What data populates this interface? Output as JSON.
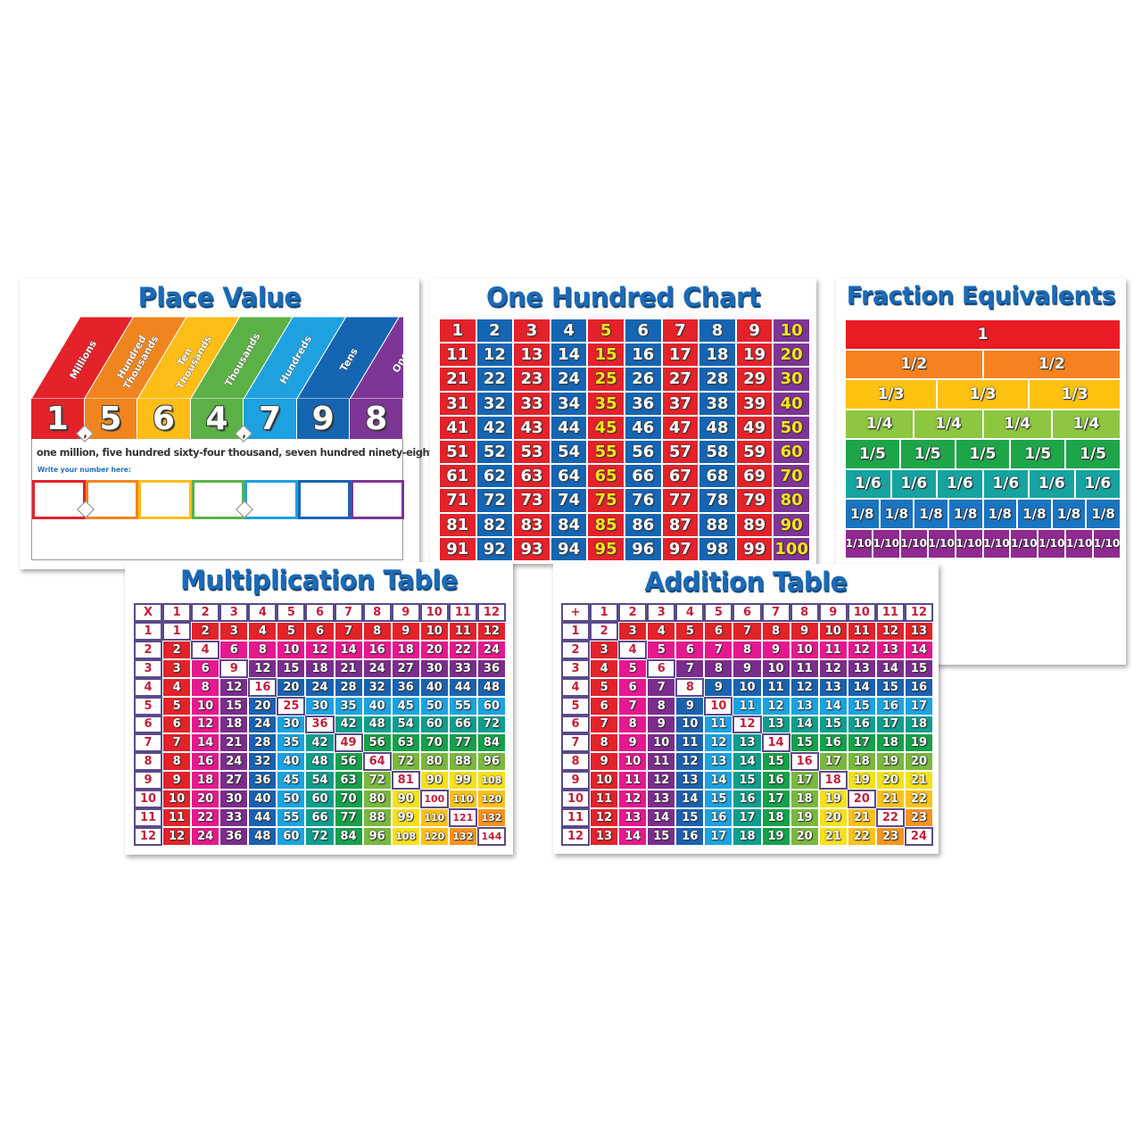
{
  "place_value": {
    "title": "Place Value",
    "columns": [
      {
        "label": "Millions",
        "digit": "1",
        "color": "#e3222a"
      },
      {
        "label": "Hundred Thousands",
        "digit": "5",
        "color": "#f0851f"
      },
      {
        "label": "Ten Thousands",
        "digit": "6",
        "color": "#fcbd17"
      },
      {
        "label": "Thousands",
        "digit": "4",
        "color": "#5bb146"
      },
      {
        "label": "Hundreds",
        "digit": "7",
        "color": "#1ea1e0"
      },
      {
        "label": "Tens",
        "digit": "9",
        "color": "#1565b3"
      },
      {
        "label": "Ones",
        "digit": "8",
        "color": "#7d3596"
      }
    ],
    "separator": ",",
    "words": "one million, five hundred sixty-four thousand, seven hundred ninety-eight",
    "write_prompt": "Write your number here:"
  },
  "hundred_chart": {
    "title": "One Hundred Chart",
    "colors": {
      "red": "#e3222a",
      "blue": "#1565b3",
      "purple": "#7d3596",
      "yellow_text": "#ffe21a"
    },
    "rows": [
      [
        1,
        2,
        3,
        4,
        5,
        6,
        7,
        8,
        9,
        10
      ],
      [
        11,
        12,
        13,
        14,
        15,
        16,
        17,
        18,
        19,
        20
      ],
      [
        21,
        22,
        23,
        24,
        25,
        26,
        27,
        28,
        29,
        30
      ],
      [
        31,
        32,
        33,
        34,
        35,
        36,
        37,
        38,
        39,
        40
      ],
      [
        41,
        42,
        43,
        44,
        45,
        46,
        47,
        48,
        49,
        50
      ],
      [
        51,
        52,
        53,
        54,
        55,
        56,
        57,
        58,
        59,
        60
      ],
      [
        61,
        62,
        63,
        64,
        65,
        66,
        67,
        68,
        69,
        70
      ],
      [
        71,
        72,
        73,
        74,
        75,
        76,
        77,
        78,
        79,
        80
      ],
      [
        81,
        82,
        83,
        84,
        85,
        86,
        87,
        88,
        89,
        90
      ],
      [
        91,
        92,
        93,
        94,
        95,
        96,
        97,
        98,
        99,
        100
      ]
    ]
  },
  "fraction_equivalents": {
    "title": "Fraction Equivalents",
    "rows": [
      {
        "fraction": "1",
        "count": 1,
        "color": "#e91c24"
      },
      {
        "fraction": "1/2",
        "count": 2,
        "color": "#f5821f"
      },
      {
        "fraction": "1/3",
        "count": 3,
        "color": "#fdc20f"
      },
      {
        "fraction": "1/4",
        "count": 4,
        "color": "#8dc63f"
      },
      {
        "fraction": "1/5",
        "count": 5,
        "color": "#1ea54a"
      },
      {
        "fraction": "1/6",
        "count": 6,
        "color": "#17a3a0"
      },
      {
        "fraction": "1/8",
        "count": 8,
        "color": "#1a74c0"
      },
      {
        "fraction": "1/10",
        "count": 10,
        "color": "#8e2a92"
      }
    ]
  },
  "band_colors": [
    "#e3222a",
    "#e6188f",
    "#7b2d8e",
    "#1a62b0",
    "#1ba3e0",
    "#0e9e8e",
    "#14a14a",
    "#7ab83e",
    "#f5e11b",
    "#fbc21a",
    "#f7941d",
    "#f7941d"
  ],
  "multiplication_table": {
    "title": "Multiplication Table",
    "operator": "X",
    "headers": [
      1,
      2,
      3,
      4,
      5,
      6,
      7,
      8,
      9,
      10,
      11,
      12
    ],
    "rows": [
      [
        1,
        2,
        3,
        4,
        5,
        6,
        7,
        8,
        9,
        10,
        11,
        12
      ],
      [
        2,
        4,
        6,
        8,
        10,
        12,
        14,
        16,
        18,
        20,
        22,
        24
      ],
      [
        3,
        6,
        9,
        12,
        15,
        18,
        21,
        24,
        27,
        30,
        33,
        36
      ],
      [
        4,
        8,
        12,
        16,
        20,
        24,
        28,
        32,
        36,
        40,
        44,
        48
      ],
      [
        5,
        10,
        15,
        20,
        25,
        30,
        35,
        40,
        45,
        50,
        55,
        60
      ],
      [
        6,
        12,
        18,
        24,
        30,
        36,
        42,
        48,
        54,
        60,
        66,
        72
      ],
      [
        7,
        14,
        21,
        28,
        35,
        42,
        49,
        56,
        63,
        70,
        77,
        84
      ],
      [
        8,
        16,
        24,
        32,
        40,
        48,
        56,
        64,
        72,
        80,
        88,
        96
      ],
      [
        9,
        18,
        27,
        36,
        45,
        54,
        63,
        72,
        81,
        90,
        99,
        108
      ],
      [
        10,
        20,
        30,
        40,
        50,
        60,
        70,
        80,
        90,
        100,
        110,
        120
      ],
      [
        11,
        22,
        33,
        44,
        55,
        66,
        77,
        88,
        99,
        110,
        121,
        132
      ],
      [
        12,
        24,
        36,
        48,
        60,
        72,
        84,
        96,
        108,
        120,
        132,
        144
      ]
    ]
  },
  "addition_table": {
    "title": "Addition Table",
    "operator": "+",
    "headers": [
      1,
      2,
      3,
      4,
      5,
      6,
      7,
      8,
      9,
      10,
      11,
      12
    ],
    "rows": [
      [
        2,
        3,
        4,
        5,
        6,
        7,
        8,
        9,
        10,
        11,
        12,
        13
      ],
      [
        3,
        4,
        5,
        6,
        7,
        8,
        9,
        10,
        11,
        12,
        13,
        14
      ],
      [
        4,
        5,
        6,
        7,
        8,
        9,
        10,
        11,
        12,
        13,
        14,
        15
      ],
      [
        5,
        6,
        7,
        8,
        9,
        10,
        11,
        12,
        13,
        14,
        15,
        16
      ],
      [
        6,
        7,
        8,
        9,
        10,
        11,
        12,
        13,
        14,
        15,
        16,
        17
      ],
      [
        7,
        8,
        9,
        10,
        11,
        12,
        13,
        14,
        15,
        16,
        17,
        18
      ],
      [
        8,
        9,
        10,
        11,
        12,
        13,
        14,
        15,
        16,
        17,
        18,
        19
      ],
      [
        9,
        10,
        11,
        12,
        13,
        14,
        15,
        16,
        17,
        18,
        19,
        20
      ],
      [
        10,
        11,
        12,
        13,
        14,
        15,
        16,
        17,
        18,
        19,
        20,
        21
      ],
      [
        11,
        12,
        13,
        14,
        15,
        16,
        17,
        18,
        19,
        20,
        21,
        22
      ],
      [
        12,
        13,
        14,
        15,
        16,
        17,
        18,
        19,
        20,
        21,
        22,
        23
      ],
      [
        13,
        14,
        15,
        16,
        17,
        18,
        19,
        20,
        21,
        22,
        23,
        24
      ]
    ]
  }
}
